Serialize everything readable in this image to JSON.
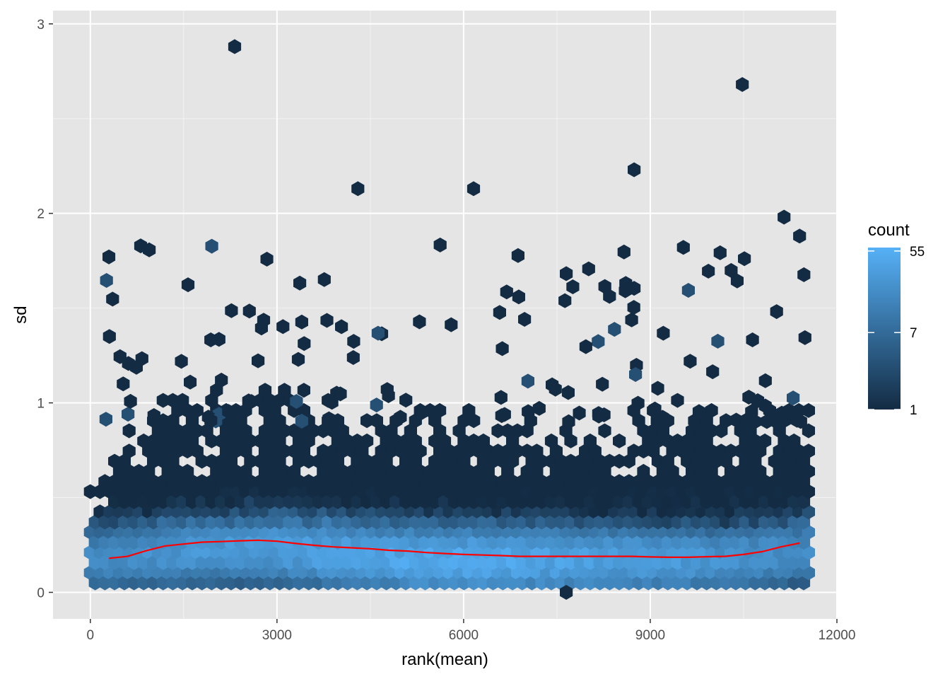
{
  "chart_data": {
    "type": "hexbin",
    "xlabel": "rank(mean)",
    "ylabel": "sd",
    "xlim": [
      -600,
      12000
    ],
    "ylim": [
      -0.14,
      3.07
    ],
    "x_ticks": [
      0,
      3000,
      6000,
      9000,
      12000
    ],
    "x_tick_labels": [
      "0",
      "3000",
      "6000",
      "9000",
      "12000"
    ],
    "y_ticks": [
      0,
      1,
      2,
      3
    ],
    "y_tick_labels": [
      "0",
      "1",
      "2",
      "3"
    ],
    "grid": true,
    "background": "#e5e5e5",
    "legend": {
      "title": "count",
      "placement": "right",
      "scale": "log",
      "breaks": [
        1,
        7,
        55
      ],
      "labels": [
        "1",
        "7",
        "55"
      ],
      "color_low": "#132b43",
      "color_high": "#56b1f7"
    },
    "outliers": [
      {
        "x": 2320,
        "y": 2.88
      },
      {
        "x": 10480,
        "y": 2.68
      },
      {
        "x": 4300,
        "y": 2.13
      },
      {
        "x": 6160,
        "y": 2.13
      },
      {
        "x": 8740,
        "y": 2.23
      },
      {
        "x": 11150,
        "y": 1.98
      },
      {
        "x": 11400,
        "y": 1.88
      },
      {
        "x": 7650,
        "y": 0.0
      }
    ],
    "smooth_line": {
      "color": "#ff0000",
      "x": [
        300,
        600,
        900,
        1200,
        1500,
        1800,
        2100,
        2400,
        2700,
        3000,
        3300,
        3600,
        3900,
        4200,
        4500,
        4800,
        5100,
        5400,
        5700,
        6000,
        6300,
        6600,
        6900,
        7200,
        7500,
        7800,
        8100,
        8400,
        8700,
        9000,
        9300,
        9600,
        9900,
        10200,
        10500,
        10800,
        11100,
        11400
      ],
      "y": [
        0.18,
        0.19,
        0.22,
        0.245,
        0.255,
        0.265,
        0.268,
        0.272,
        0.275,
        0.27,
        0.258,
        0.248,
        0.24,
        0.235,
        0.23,
        0.222,
        0.218,
        0.21,
        0.205,
        0.2,
        0.197,
        0.194,
        0.19,
        0.19,
        0.19,
        0.19,
        0.19,
        0.19,
        0.19,
        0.187,
        0.185,
        0.185,
        0.188,
        0.19,
        0.2,
        0.215,
        0.24,
        0.26
      ]
    }
  }
}
